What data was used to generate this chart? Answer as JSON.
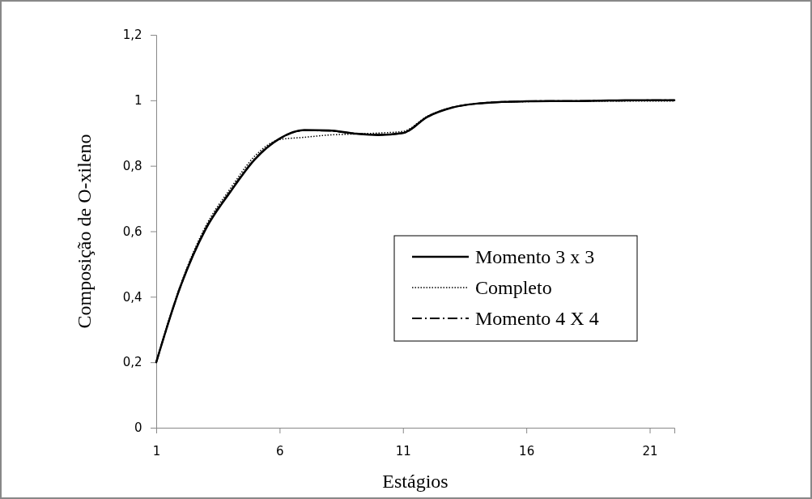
{
  "chart_data": {
    "type": "line",
    "xlabel": "Estágios",
    "ylabel": "Composição de O-xileno",
    "x": [
      1,
      2,
      3,
      4,
      5,
      6,
      7,
      8,
      9,
      10,
      11,
      12,
      13,
      14,
      15,
      16,
      17,
      18,
      19,
      20,
      21,
      22
    ],
    "xlim": [
      1,
      22
    ],
    "xticks": [
      1,
      6,
      11,
      16,
      21
    ],
    "ylim": [
      0,
      1.2
    ],
    "yticks": [
      {
        "value": 0,
        "label": "0"
      },
      {
        "value": 0.2,
        "label": "0,2"
      },
      {
        "value": 0.4,
        "label": "0,4"
      },
      {
        "value": 0.6,
        "label": "0,6"
      },
      {
        "value": 0.8,
        "label": "0,8"
      },
      {
        "value": 1,
        "label": "1"
      },
      {
        "value": 1.2,
        "label": "1,2"
      }
    ],
    "grid": false,
    "legend": "right",
    "marker": "none",
    "series": [
      {
        "name": "Momento 3 x 3",
        "color": "#000000",
        "line_style": "solid",
        "values": [
          0.2,
          0.435,
          0.606,
          0.72,
          0.82,
          0.883,
          0.909,
          0.908,
          0.899,
          0.894,
          0.9,
          0.95,
          0.978,
          0.99,
          0.995,
          0.997,
          0.998,
          0.998,
          0.999,
          1.0,
          1.0,
          1.0
        ]
      },
      {
        "name": "Completo",
        "color": "#000000",
        "line_style": "dotted",
        "values": [
          0.2,
          0.44,
          0.615,
          0.73,
          0.83,
          0.88,
          0.887,
          0.894,
          0.897,
          0.9,
          0.905,
          0.952,
          0.978,
          0.99,
          0.995,
          0.996,
          0.997,
          0.997,
          0.998,
          0.998,
          0.998,
          0.998
        ]
      },
      {
        "name": "Momento 4 X 4",
        "color": "#000000",
        "line_style": "dashdot",
        "values": [
          0.2,
          0.435,
          0.608,
          0.722,
          0.821,
          0.883,
          0.908,
          0.907,
          0.899,
          0.895,
          0.9,
          0.95,
          0.978,
          0.99,
          0.995,
          0.997,
          0.998,
          0.998,
          0.999,
          0.999,
          1.0,
          1.0
        ]
      }
    ]
  }
}
